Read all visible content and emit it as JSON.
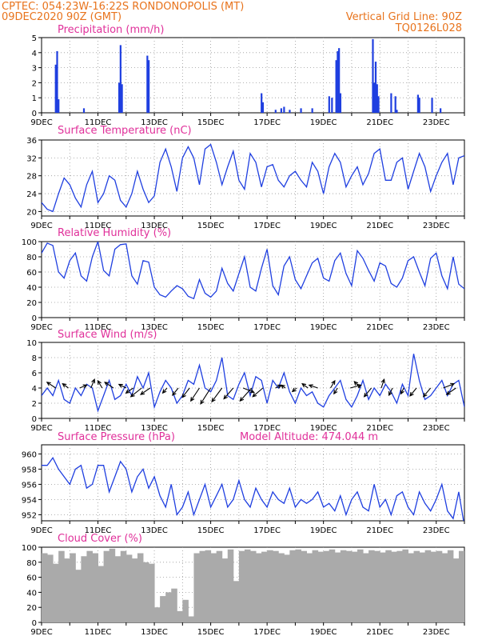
{
  "header": {
    "line1_left": "CPTEC:   054:23W-16:22S   RONDONOPOLIS (MT)",
    "line2_left": "09DEC2020 90Z (GMT)",
    "line1_right": "Vertical Grid Line: 90Z",
    "line2_right": "TQ0126L028"
  },
  "colors": {
    "header": "#e8731c",
    "title": "#e0309a",
    "series": "#1f3fe0",
    "cloud": "#aaaaaa",
    "arrow": "#000000"
  },
  "x_ticks": [
    "9DEC",
    "11DEC",
    "13DEC",
    "15DEC",
    "17DEC",
    "19DEC",
    "21DEC",
    "23DEC"
  ],
  "chart_data": [
    {
      "type": "bar",
      "title": "Precipitation (mm/h)",
      "ylim": [
        0,
        5
      ],
      "yticks": [
        0,
        1,
        2,
        3,
        4,
        5
      ],
      "x_unit": "days since 9DEC 00Z",
      "x": [
        0.5,
        0.55,
        0.6,
        1.5,
        2.75,
        2.8,
        2.85,
        3.75,
        3.8,
        7.8,
        7.85,
        8.3,
        8.5,
        8.6,
        8.8,
        9.2,
        9.6,
        10.2,
        10.3,
        10.45,
        10.5,
        10.55,
        10.6,
        11.75,
        11.8,
        11.85,
        11.9,
        11.95,
        12.4,
        12.55,
        12.6,
        13.35,
        13.4,
        13.85,
        14.15
      ],
      "values": [
        3.2,
        4.1,
        0.9,
        0.3,
        2.0,
        4.5,
        1.9,
        3.8,
        3.5,
        1.3,
        0.7,
        0.2,
        0.3,
        0.4,
        0.2,
        0.3,
        0.3,
        1.1,
        1.0,
        3.5,
        4.1,
        4.3,
        1.3,
        4.9,
        2.0,
        3.4,
        1.9,
        1.1,
        1.3,
        1.1,
        0.2,
        1.2,
        1.0,
        1.0,
        0.3
      ]
    },
    {
      "type": "line",
      "title": "Surface Temperature (nC)",
      "ylim": [
        19,
        36
      ],
      "yticks": [
        20,
        24,
        28,
        32,
        36
      ],
      "x_unit": "days since 9DEC 00Z",
      "x": [
        0,
        0.2,
        0.4,
        0.6,
        0.8,
        1.0,
        1.2,
        1.4,
        1.6,
        1.8,
        2.0,
        2.2,
        2.4,
        2.6,
        2.8,
        3.0,
        3.2,
        3.4,
        3.6,
        3.8,
        4.0,
        4.2,
        4.4,
        4.6,
        4.8,
        5.0,
        5.2,
        5.4,
        5.6,
        5.8,
        6.0,
        6.2,
        6.4,
        6.6,
        6.8,
        7.0,
        7.2,
        7.4,
        7.6,
        7.8,
        8.0,
        8.2,
        8.4,
        8.6,
        8.8,
        9.0,
        9.2,
        9.4,
        9.6,
        9.8,
        10.0,
        10.2,
        10.4,
        10.6,
        10.8,
        11.0,
        11.2,
        11.4,
        11.6,
        11.8,
        12.0,
        12.2,
        12.4,
        12.6,
        12.8,
        13.0,
        13.2,
        13.4,
        13.6,
        13.8,
        14.0,
        14.2,
        14.4,
        14.6,
        14.8,
        15.0
      ],
      "values": [
        22,
        20.5,
        20,
        24,
        27.5,
        26,
        23,
        21,
        26,
        29,
        22,
        24,
        28,
        27,
        22.5,
        21,
        24,
        29,
        25,
        22,
        23.5,
        31,
        34,
        30,
        24.5,
        32,
        34.5,
        32,
        26,
        34,
        35,
        31,
        26,
        30,
        33.5,
        27,
        25,
        33,
        31,
        25.5,
        30,
        30.5,
        27,
        25.5,
        28,
        29,
        27,
        25.5,
        31,
        29,
        24,
        30,
        33,
        31,
        25.5,
        28,
        30,
        26,
        28.5,
        33,
        34,
        27,
        27,
        31,
        32,
        25,
        29,
        33,
        30,
        24.5,
        28,
        31,
        33,
        26,
        32,
        32.5
      ]
    },
    {
      "type": "line",
      "title": "Relative Humidity (%)",
      "ylim": [
        0,
        100
      ],
      "yticks": [
        0,
        20,
        40,
        60,
        80,
        100
      ],
      "x_unit": "days since 9DEC 00Z",
      "x": [
        0,
        0.2,
        0.4,
        0.6,
        0.8,
        1.0,
        1.2,
        1.4,
        1.6,
        1.8,
        2.0,
        2.2,
        2.4,
        2.6,
        2.8,
        3.0,
        3.2,
        3.4,
        3.6,
        3.8,
        4.0,
        4.2,
        4.4,
        4.6,
        4.8,
        5.0,
        5.2,
        5.4,
        5.6,
        5.8,
        6.0,
        6.2,
        6.4,
        6.6,
        6.8,
        7.0,
        7.2,
        7.4,
        7.6,
        7.8,
        8.0,
        8.2,
        8.4,
        8.6,
        8.8,
        9.0,
        9.2,
        9.4,
        9.6,
        9.8,
        10.0,
        10.2,
        10.4,
        10.6,
        10.8,
        11.0,
        11.2,
        11.4,
        11.6,
        11.8,
        12.0,
        12.2,
        12.4,
        12.6,
        12.8,
        13.0,
        13.2,
        13.4,
        13.6,
        13.8,
        14.0,
        14.2,
        14.4,
        14.6,
        14.8,
        15.0
      ],
      "values": [
        85,
        98,
        95,
        60,
        52,
        75,
        85,
        55,
        48,
        80,
        100,
        62,
        55,
        90,
        96,
        97,
        55,
        44,
        75,
        73,
        40,
        30,
        27,
        35,
        42,
        38,
        28,
        25,
        50,
        32,
        27,
        35,
        65,
        45,
        35,
        58,
        80,
        40,
        35,
        65,
        90,
        42,
        30,
        68,
        80,
        50,
        38,
        55,
        72,
        78,
        52,
        48,
        75,
        85,
        58,
        42,
        88,
        78,
        62,
        48,
        72,
        68,
        45,
        40,
        52,
        75,
        80,
        60,
        42,
        78,
        85,
        55,
        38,
        80,
        44,
        38
      ]
    },
    {
      "type": "line",
      "title": "Surface Wind (m/s)",
      "ylim": [
        0,
        10
      ],
      "yticks": [
        0,
        2,
        4,
        6,
        8,
        10
      ],
      "x_unit": "days since 9DEC 00Z",
      "x": [
        0,
        0.2,
        0.4,
        0.6,
        0.8,
        1.0,
        1.2,
        1.4,
        1.6,
        1.8,
        2.0,
        2.2,
        2.4,
        2.6,
        2.8,
        3.0,
        3.2,
        3.4,
        3.6,
        3.8,
        4.0,
        4.2,
        4.4,
        4.6,
        4.8,
        5.0,
        5.2,
        5.4,
        5.6,
        5.8,
        6.0,
        6.2,
        6.4,
        6.6,
        6.8,
        7.0,
        7.2,
        7.4,
        7.6,
        7.8,
        8.0,
        8.2,
        8.4,
        8.6,
        8.8,
        9.0,
        9.2,
        9.4,
        9.6,
        9.8,
        10.0,
        10.2,
        10.4,
        10.6,
        10.8,
        11.0,
        11.2,
        11.4,
        11.6,
        11.8,
        12.0,
        12.2,
        12.4,
        12.6,
        12.8,
        13.0,
        13.2,
        13.4,
        13.6,
        13.8,
        14.0,
        14.2,
        14.4,
        14.6,
        14.8,
        15.0
      ],
      "values": [
        3,
        4,
        3,
        5,
        2.5,
        2,
        4,
        3,
        4.5,
        4,
        1,
        3,
        5,
        2.5,
        3,
        4.5,
        3,
        5.5,
        4,
        6,
        1.5,
        3.5,
        5,
        4,
        2,
        3,
        5,
        4.5,
        7,
        4,
        3.5,
        5,
        8,
        3,
        2.5,
        4.5,
        6,
        3,
        5.5,
        5,
        2,
        5,
        4,
        6,
        3.5,
        2,
        4,
        3,
        3.5,
        2,
        1.5,
        3,
        4,
        5,
        2.5,
        1.5,
        3,
        5,
        2.5,
        4,
        3,
        4.5,
        3.5,
        2,
        4.5,
        3,
        8.5,
        5,
        2.5,
        3,
        4,
        5,
        3,
        4.5,
        5,
        1.5
      ]
    },
    {
      "type": "line",
      "title": "Surface Pressure (hPa)",
      "ylim": [
        951.2,
        961.2
      ],
      "yticks": [
        952,
        954,
        956,
        958,
        960
      ],
      "annotation": "Model Altitude: 474.044 m",
      "x_unit": "days since 9DEC 00Z",
      "x": [
        0,
        0.2,
        0.4,
        0.6,
        0.8,
        1.0,
        1.2,
        1.4,
        1.6,
        1.8,
        2.0,
        2.2,
        2.4,
        2.6,
        2.8,
        3.0,
        3.2,
        3.4,
        3.6,
        3.8,
        4.0,
        4.2,
        4.4,
        4.6,
        4.8,
        5.0,
        5.2,
        5.4,
        5.6,
        5.8,
        6.0,
        6.2,
        6.4,
        6.6,
        6.8,
        7.0,
        7.2,
        7.4,
        7.6,
        7.8,
        8.0,
        8.2,
        8.4,
        8.6,
        8.8,
        9.0,
        9.2,
        9.4,
        9.6,
        9.8,
        10.0,
        10.2,
        10.4,
        10.6,
        10.8,
        11.0,
        11.2,
        11.4,
        11.6,
        11.8,
        12.0,
        12.2,
        12.4,
        12.6,
        12.8,
        13.0,
        13.2,
        13.4,
        13.6,
        13.8,
        14.0,
        14.2,
        14.4,
        14.6,
        14.8,
        15.0
      ],
      "values": [
        958.5,
        958.5,
        959.5,
        958,
        957,
        956,
        958,
        958.5,
        955.5,
        956,
        958.5,
        958.5,
        955,
        957,
        959,
        958,
        955,
        957,
        958,
        955.5,
        957,
        954.5,
        953,
        956,
        952,
        953,
        955,
        952,
        954,
        956,
        953,
        954.5,
        956,
        953,
        954,
        956.5,
        954,
        953,
        955.5,
        954,
        953,
        955,
        954,
        953.5,
        955.5,
        953,
        954,
        953.5,
        954,
        955,
        953,
        953.5,
        952.5,
        954.5,
        952,
        954,
        955,
        953,
        952.5,
        956,
        953,
        954,
        952,
        954.5,
        955,
        953,
        952,
        955,
        953.5,
        952.5,
        954,
        956,
        952.5,
        951.5,
        955,
        950.5
      ]
    },
    {
      "type": "area",
      "title": "Cloud Cover (%)",
      "ylim": [
        0,
        100
      ],
      "yticks": [
        0,
        20,
        40,
        60,
        80,
        100
      ],
      "x_unit": "days since 9DEC 00Z",
      "x": [
        0,
        0.2,
        0.4,
        0.6,
        0.8,
        1.0,
        1.2,
        1.4,
        1.6,
        1.8,
        2.0,
        2.2,
        2.4,
        2.6,
        2.8,
        3.0,
        3.2,
        3.4,
        3.6,
        3.8,
        4.0,
        4.2,
        4.4,
        4.6,
        4.8,
        5.0,
        5.2,
        5.4,
        5.6,
        5.8,
        6.0,
        6.2,
        6.4,
        6.6,
        6.8,
        7.0,
        7.2,
        7.4,
        7.6,
        7.8,
        8.0,
        8.2,
        8.4,
        8.6,
        8.8,
        9.0,
        9.2,
        9.4,
        9.6,
        9.8,
        10.0,
        10.2,
        10.4,
        10.6,
        10.8,
        11.0,
        11.2,
        11.4,
        11.6,
        11.8,
        12.0,
        12.2,
        12.4,
        12.6,
        12.8,
        13.0,
        13.2,
        13.4,
        13.6,
        13.8,
        14.0,
        14.2,
        14.4,
        14.6,
        14.8,
        15.0
      ],
      "values": [
        92,
        90,
        78,
        95,
        85,
        92,
        70,
        88,
        95,
        92,
        75,
        95,
        98,
        88,
        95,
        90,
        85,
        92,
        80,
        78,
        20,
        35,
        40,
        45,
        15,
        30,
        8,
        92,
        95,
        96,
        92,
        95,
        85,
        97,
        55,
        95,
        97,
        95,
        92,
        94,
        96,
        95,
        92,
        90,
        96,
        97,
        95,
        92,
        96,
        94,
        95,
        97,
        93,
        96,
        95,
        94,
        97,
        92,
        96,
        95,
        93,
        96,
        94,
        95,
        97,
        92,
        95,
        93,
        96,
        94,
        95,
        92,
        96,
        85,
        95,
        88
      ]
    }
  ],
  "wind_arrows": [
    {
      "x": 0.5,
      "u": -1.2,
      "v": 0.8
    },
    {
      "x": 0.95,
      "u": -0.8,
      "v": 0.6
    },
    {
      "x": 1.35,
      "u": 1.0,
      "v": 0.4
    },
    {
      "x": 1.75,
      "u": 0.5,
      "v": 1.2
    },
    {
      "x": 2.15,
      "u": -0.6,
      "v": 1.0
    },
    {
      "x": 2.55,
      "u": -1.2,
      "v": 0.8
    },
    {
      "x": 3.0,
      "u": -1.0,
      "v": 0.5
    },
    {
      "x": 3.25,
      "u": -1.0,
      "v": -0.7
    },
    {
      "x": 3.55,
      "u": -1.5,
      "v": -1.2
    },
    {
      "x": 3.85,
      "u": -1.3,
      "v": -0.9
    },
    {
      "x": 4.45,
      "u": -0.6,
      "v": -0.7
    },
    {
      "x": 4.85,
      "u": -0.8,
      "v": -1.0
    },
    {
      "x": 5.25,
      "u": -1.0,
      "v": -1.3
    },
    {
      "x": 5.6,
      "u": -1.2,
      "v": -1.8
    },
    {
      "x": 6.0,
      "u": -1.4,
      "v": -2.2
    },
    {
      "x": 6.4,
      "u": -1.4,
      "v": -1.9
    },
    {
      "x": 6.8,
      "u": -1.3,
      "v": -1.5
    },
    {
      "x": 7.15,
      "u": 1.5,
      "v": -0.6
    },
    {
      "x": 7.45,
      "u": -1.6,
      "v": -1.8
    },
    {
      "x": 7.85,
      "u": -1.4,
      "v": -1.2
    },
    {
      "x": 8.3,
      "u": 0.8,
      "v": 0.4
    },
    {
      "x": 8.65,
      "u": -0.6,
      "v": 0.4
    },
    {
      "x": 9.05,
      "u": -0.6,
      "v": -0.5
    },
    {
      "x": 9.45,
      "u": -0.8,
      "v": 0.6
    },
    {
      "x": 9.8,
      "u": -1.2,
      "v": 0.4
    },
    {
      "x": 10.25,
      "u": 0.6,
      "v": 1.0
    },
    {
      "x": 10.5,
      "u": -0.5,
      "v": -0.8
    },
    {
      "x": 10.95,
      "u": 1.5,
      "v": 0.4
    },
    {
      "x": 11.3,
      "u": -0.8,
      "v": 0.9
    },
    {
      "x": 11.7,
      "u": -1.0,
      "v": -1.2
    },
    {
      "x": 12.05,
      "u": 0.4,
      "v": 1.2
    },
    {
      "x": 12.45,
      "u": -0.5,
      "v": -1.0
    },
    {
      "x": 12.85,
      "u": -0.4,
      "v": -0.8
    },
    {
      "x": 13.3,
      "u": -0.9,
      "v": -1.1
    },
    {
      "x": 13.8,
      "u": -1.0,
      "v": -1.2
    },
    {
      "x": 14.25,
      "u": 1.5,
      "v": 0.6
    },
    {
      "x": 14.7,
      "u": -1.3,
      "v": -0.9
    }
  ]
}
